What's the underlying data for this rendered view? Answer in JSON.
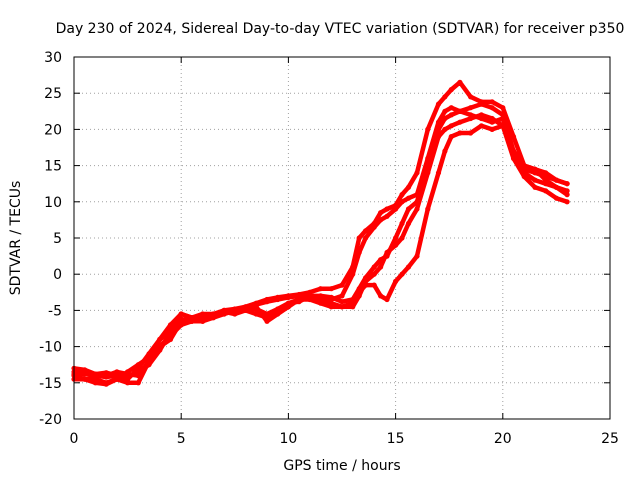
{
  "chart_data": {
    "type": "line",
    "title": "Day 230 of 2024, Sidereal Day-to-day VTEC variation (SDTVAR) for receiver p350",
    "xlabel": "GPS time / hours",
    "ylabel": "SDTVAR / TECUs",
    "xlim": [
      0,
      25
    ],
    "ylim": [
      -20,
      30
    ],
    "xticks": [
      "0",
      "5",
      "10",
      "15",
      "20",
      "25"
    ],
    "yticks": [
      "-20",
      "-15",
      "-10",
      "-5",
      "0",
      "5",
      "10",
      "15",
      "20",
      "25",
      "30"
    ],
    "grid": true,
    "line_color": "#ff0000",
    "series": [
      {
        "name": "trace-1",
        "x": [
          0,
          0.5,
          1,
          1.5,
          2,
          2.5,
          3,
          3.5,
          4,
          4.5,
          5,
          5.5,
          6,
          6.5,
          7,
          7.5,
          8,
          8.5,
          9,
          9.5,
          10,
          10.5,
          11,
          11.5,
          12,
          12.5,
          13,
          13.3,
          13.6,
          14,
          14.3,
          14.6,
          15,
          15.3,
          15.6,
          16,
          16.5,
          17,
          17.3,
          17.6,
          18,
          18.5,
          19,
          19.5,
          20,
          20.5,
          21,
          21.5,
          22,
          22.5,
          23
        ],
        "y": [
          -13.5,
          -13.5,
          -13.8,
          -13.6,
          -14,
          -14.5,
          -13,
          -11,
          -9,
          -7,
          -5.5,
          -6,
          -6.5,
          -5.5,
          -5,
          -4.8,
          -4.5,
          -4,
          -3.5,
          -3.2,
          -3,
          -2.8,
          -2.5,
          -2,
          -2,
          -1.5,
          1,
          5,
          6,
          7,
          8.5,
          9,
          9.5,
          11,
          12,
          14,
          20,
          23.5,
          24.5,
          25.5,
          26.5,
          24.5,
          23.8,
          23.8,
          23,
          19,
          15,
          14.5,
          14,
          13,
          12.5
        ]
      },
      {
        "name": "trace-2",
        "x": [
          0,
          0.5,
          1,
          1.5,
          2,
          2.5,
          3,
          3.5,
          4,
          4.5,
          5,
          5.5,
          6,
          6.5,
          7,
          7.5,
          8,
          8.5,
          9,
          9.5,
          10,
          10.5,
          11,
          11.5,
          12,
          12.5,
          13,
          13.3,
          13.6,
          14,
          14.3,
          14.6,
          15,
          15.3,
          15.6,
          16,
          16.5,
          17,
          17.3,
          17.6,
          18,
          18.5,
          19,
          19.5,
          20,
          20.5,
          21,
          21.5,
          22,
          22.5,
          23
        ],
        "y": [
          -14,
          -14.5,
          -15,
          -15.2,
          -14.5,
          -13.5,
          -12.5,
          -11.5,
          -10,
          -8.5,
          -7,
          -6.5,
          -6.5,
          -6,
          -5.5,
          -5,
          -4.8,
          -4.2,
          -3.8,
          -3.5,
          -3.2,
          -3,
          -3.2,
          -3.5,
          -3.5,
          -3,
          0,
          3,
          5,
          6.5,
          7.5,
          8,
          9,
          10,
          10.5,
          11,
          16,
          21,
          22.5,
          23,
          22.5,
          23,
          23.5,
          23,
          22,
          17,
          14,
          13,
          12.5,
          12,
          11.5
        ]
      },
      {
        "name": "trace-3",
        "x": [
          0,
          0.5,
          1,
          1.5,
          2,
          2.5,
          3,
          3.5,
          4,
          4.5,
          5,
          5.5,
          6,
          6.5,
          7,
          7.5,
          8,
          8.5,
          9,
          9.5,
          10,
          10.5,
          11,
          11.5,
          12,
          12.5,
          13,
          13.3,
          13.6,
          14,
          14.3,
          14.6,
          15,
          15.3,
          15.6,
          16,
          16.5,
          17,
          17.3,
          17.6,
          18,
          18.5,
          19,
          19.5,
          20,
          20.5,
          21,
          21.5,
          22,
          22.5,
          23
        ],
        "y": [
          -14.5,
          -14.5,
          -14.5,
          -15,
          -14.5,
          -15,
          -15,
          -12,
          -9,
          -8,
          -5.5,
          -6,
          -6,
          -6,
          -5.2,
          -5.5,
          -5,
          -5.5,
          -6,
          -5,
          -4,
          -3.5,
          -3.5,
          -4,
          -4.5,
          -4.5,
          -4.5,
          -3,
          -1,
          0,
          1,
          3,
          4,
          5,
          7,
          9,
          14,
          19,
          20,
          20.5,
          21,
          21.5,
          22,
          21.5,
          20.5,
          17,
          14.5,
          14,
          13.5,
          13,
          12.5
        ]
      },
      {
        "name": "trace-4",
        "x": [
          0,
          0.5,
          1,
          1.5,
          2,
          2.5,
          3,
          3.5,
          4,
          4.5,
          5,
          5.5,
          6,
          6.5,
          7,
          7.5,
          8,
          8.5,
          9,
          9.5,
          10,
          10.5,
          11,
          11.5,
          12,
          12.5,
          13,
          13.3,
          13.6,
          14,
          14.3,
          14.6,
          15,
          15.3,
          15.6,
          16,
          16.5,
          17,
          17.3,
          17.6,
          18,
          18.5,
          19,
          19.5,
          20,
          20.5,
          21,
          21.5,
          22,
          22.5,
          23
        ],
        "y": [
          -13,
          -13.2,
          -13.8,
          -14,
          -13.5,
          -13.8,
          -14,
          -12,
          -10,
          -9,
          -6.5,
          -6,
          -5.5,
          -5.5,
          -5.5,
          -5,
          -4.5,
          -4.5,
          -6.5,
          -5.5,
          -4.5,
          -3.5,
          -3.2,
          -3.5,
          -4,
          -4.5,
          -4,
          -2.5,
          -1.5,
          -1.5,
          -3,
          -3.5,
          -1,
          0,
          1,
          2.5,
          9,
          14,
          17,
          19,
          19.5,
          19.5,
          20.5,
          20,
          20.5,
          16,
          13.5,
          12,
          11.5,
          10.5,
          10
        ]
      },
      {
        "name": "trace-5",
        "x": [
          0,
          0.5,
          1,
          1.5,
          2,
          2.5,
          3,
          3.5,
          4,
          4.5,
          5,
          5.5,
          6,
          6.5,
          7,
          7.5,
          8,
          8.5,
          9,
          9.5,
          10,
          10.5,
          11,
          11.5,
          12,
          12.5,
          13,
          13.3,
          13.6,
          14,
          14.3,
          14.6,
          15,
          15.3,
          15.6,
          16,
          16.5,
          17,
          17.3,
          17.6,
          18,
          18.5,
          19,
          19.5,
          20,
          20.5,
          21,
          21.5,
          22,
          22.5,
          23
        ],
        "y": [
          -13.8,
          -13.8,
          -14,
          -14.2,
          -14,
          -14.2,
          -13.5,
          -12.5,
          -10.5,
          -8,
          -6.2,
          -6.5,
          -6,
          -5.8,
          -5,
          -5.2,
          -4.8,
          -4.8,
          -5.5,
          -4.8,
          -4,
          -3.8,
          -3,
          -3,
          -3.2,
          -3.8,
          -3.5,
          -2,
          -0.5,
          1,
          2,
          2.5,
          5,
          7,
          9,
          10,
          15,
          20,
          21.5,
          22,
          22.5,
          22,
          21.5,
          21,
          21.5,
          17,
          15,
          14.5,
          13,
          12,
          11
        ]
      }
    ]
  }
}
